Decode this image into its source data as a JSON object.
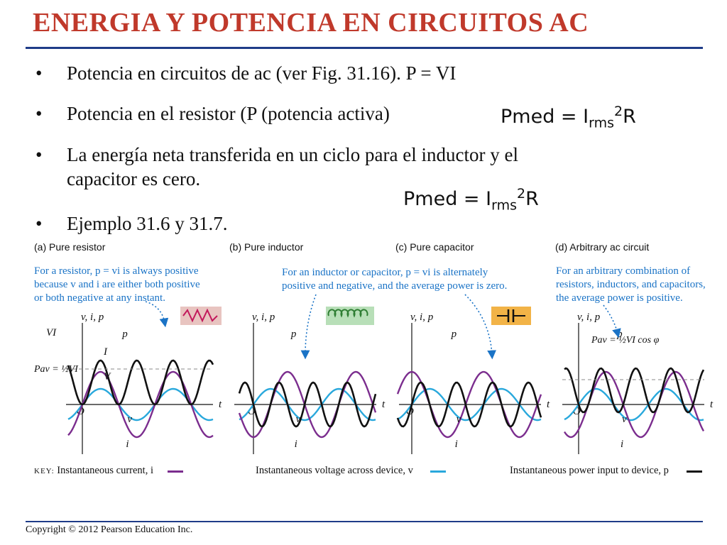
{
  "title": "ENERGIA Y POTENCIA EN CIRCUITOS AC",
  "bullets": {
    "marker": "•",
    "b1": "Potencia en circuitos de ac (ver Fig. 31.16). P = VI",
    "b2": "Potencia en el resistor (P (potencia activa)",
    "b3_line1": "La energía neta transferida en un ciclo para el inductor y el",
    "b3_line2": "capacitor es cero.",
    "b4": "Ejemplo 31.6 y 31.7."
  },
  "formula": {
    "lhs": "Pmed = I",
    "sub": "rms",
    "sup": "2",
    "rhs": "R"
  },
  "figure": {
    "panels": [
      {
        "id": "a",
        "label": "(a) Pure resistor",
        "note": [
          "For a resistor, p = vi is always positive",
          "because v and i are either both positive",
          "or both negative at any instant."
        ],
        "axis_label": "v, i, p",
        "t": "t",
        "o": "O",
        "p": "p",
        "v": "v",
        "i": "i",
        "vi_label": "VI",
        "I_label": "I",
        "V_label": "V",
        "pav_label": "Pav = ½VI",
        "phase": 0,
        "amp_p": 1.0,
        "offset_p": 0.5,
        "icon": "resistor"
      },
      {
        "id": "b",
        "label": "(b) Pure inductor",
        "note": [
          "For an inductor or capacitor, p = vi is alternately",
          "positive and negative, and the average power is zero."
        ],
        "axis_label": "v, i, p",
        "t": "t",
        "o": "O",
        "p": "p",
        "v": "v",
        "i": "i",
        "phase": 90,
        "icon": "inductor"
      },
      {
        "id": "c",
        "label": "(c) Pure capacitor",
        "axis_label": "v, i, p",
        "t": "t",
        "o": "O",
        "p": "p",
        "v": "v",
        "i": "i",
        "phase": -90,
        "icon": "capacitor"
      },
      {
        "id": "d",
        "label": "(d) Arbitrary ac circuit",
        "note": [
          "For an arbitrary combination of",
          "resistors, inductors, and capacitors,",
          "the average power is positive."
        ],
        "axis_label": "v, i, p",
        "t": "t",
        "o": "O",
        "p": "p",
        "v": "v",
        "i": "i",
        "pav_label": "Pav = ½VI cos φ",
        "phase": 50
      }
    ],
    "key": {
      "keyword": "KEY:",
      "current": "Instantaneous current, i",
      "voltage": "Instantaneous voltage across device, v",
      "power": "Instantaneous power input to device, p"
    },
    "colors": {
      "current": "#7b2d8e",
      "voltage": "#29a8dc",
      "power": "#111111",
      "note": "#1a73c6"
    }
  },
  "copyright": "Copyright © 2012 Pearson Education Inc."
}
